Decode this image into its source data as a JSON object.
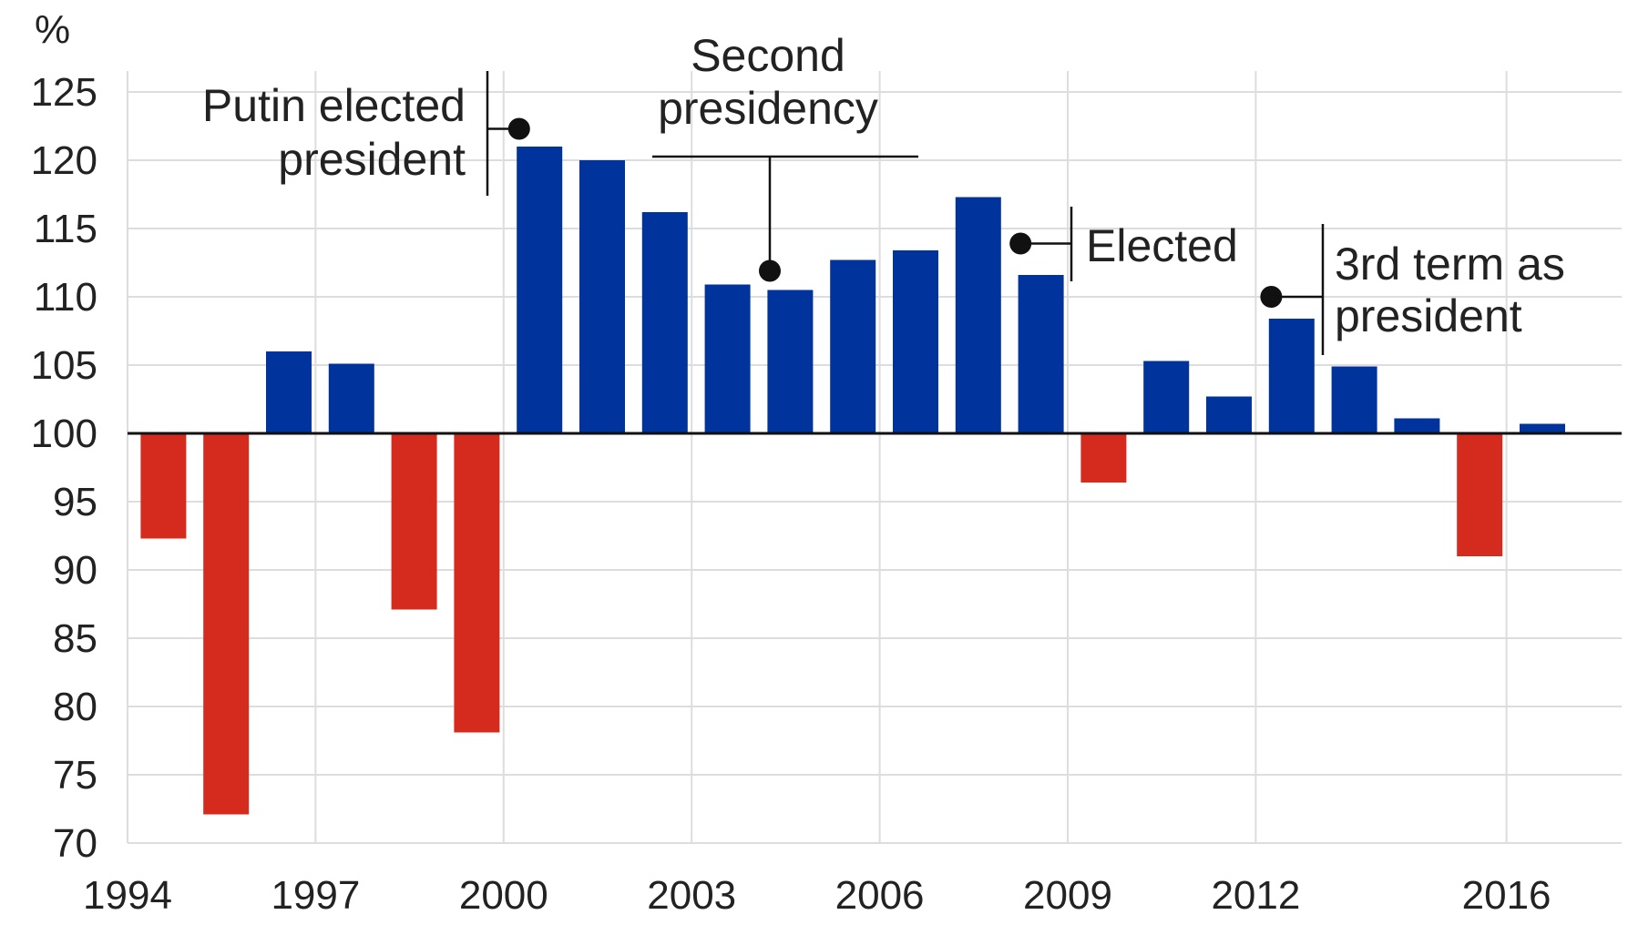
{
  "chart_data": {
    "type": "bar",
    "ylabel": "%",
    "ylim": [
      70,
      125
    ],
    "yticks": [
      125,
      120,
      115,
      110,
      105,
      100,
      95,
      90,
      85,
      80,
      75,
      70
    ],
    "xticks": [
      "1994",
      "1997",
      "2000",
      "2003",
      "2006",
      "2009",
      "2012",
      "2016"
    ],
    "baseline": 100,
    "categories": [
      "1995",
      "1996",
      "1997",
      "1998",
      "1999",
      "2000",
      "2001",
      "2002",
      "2003",
      "2004",
      "2005",
      "2006",
      "2007",
      "2008",
      "2009",
      "2010",
      "2011",
      "2012",
      "2013",
      "2014",
      "2015",
      "2016",
      "2017"
    ],
    "values": [
      92.3,
      72.1,
      106.0,
      105.1,
      87.1,
      78.1,
      121.0,
      120.0,
      116.2,
      110.9,
      110.5,
      112.7,
      113.4,
      117.3,
      111.6,
      96.4,
      105.3,
      102.7,
      108.4,
      104.9,
      101.1,
      91.0,
      100.7
    ],
    "colors": {
      "positive": "#00339b",
      "negative": "#d52b1e"
    },
    "grid": true,
    "annotations": [
      {
        "lines": [
          "Putin elected",
          "president"
        ],
        "year": 2000,
        "value": 122.3
      },
      {
        "lines": [
          "Second",
          "presidency"
        ],
        "year": 2004,
        "value": 111.9
      },
      {
        "lines": [
          "Elected"
        ],
        "year": 2008,
        "value": 113.9
      },
      {
        "lines": [
          "3rd term as",
          "president"
        ],
        "year": 2012,
        "value": 110.0
      }
    ]
  }
}
